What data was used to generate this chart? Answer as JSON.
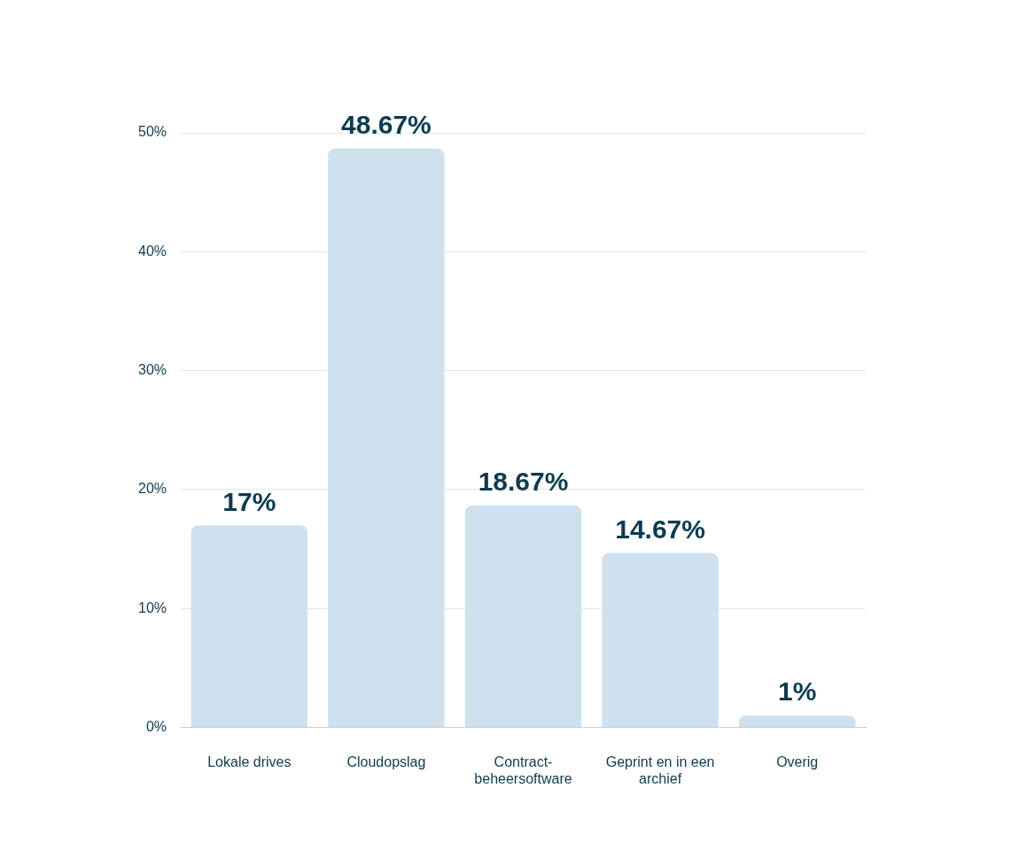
{
  "chart_data": {
    "type": "bar",
    "categories": [
      "Lokale drives",
      "Cloudopslag",
      "Contract-beheersoftware",
      "Geprint en in een archief",
      "Overig"
    ],
    "values": [
      17,
      48.67,
      18.67,
      14.67,
      1
    ],
    "value_labels": [
      "17%",
      "48.67%",
      "18.67%",
      "14.67%",
      "1%"
    ],
    "color": "#cfe1ef",
    "ylim": [
      0,
      50
    ],
    "yticks": [
      {
        "value": 0,
        "label": "0%"
      },
      {
        "value": 10,
        "label": "10%"
      },
      {
        "value": 20,
        "label": "20%"
      },
      {
        "value": 30,
        "label": "30%"
      },
      {
        "value": 40,
        "label": "40%"
      },
      {
        "value": 50,
        "label": "50%"
      }
    ],
    "grid": "y",
    "legend": false
  }
}
